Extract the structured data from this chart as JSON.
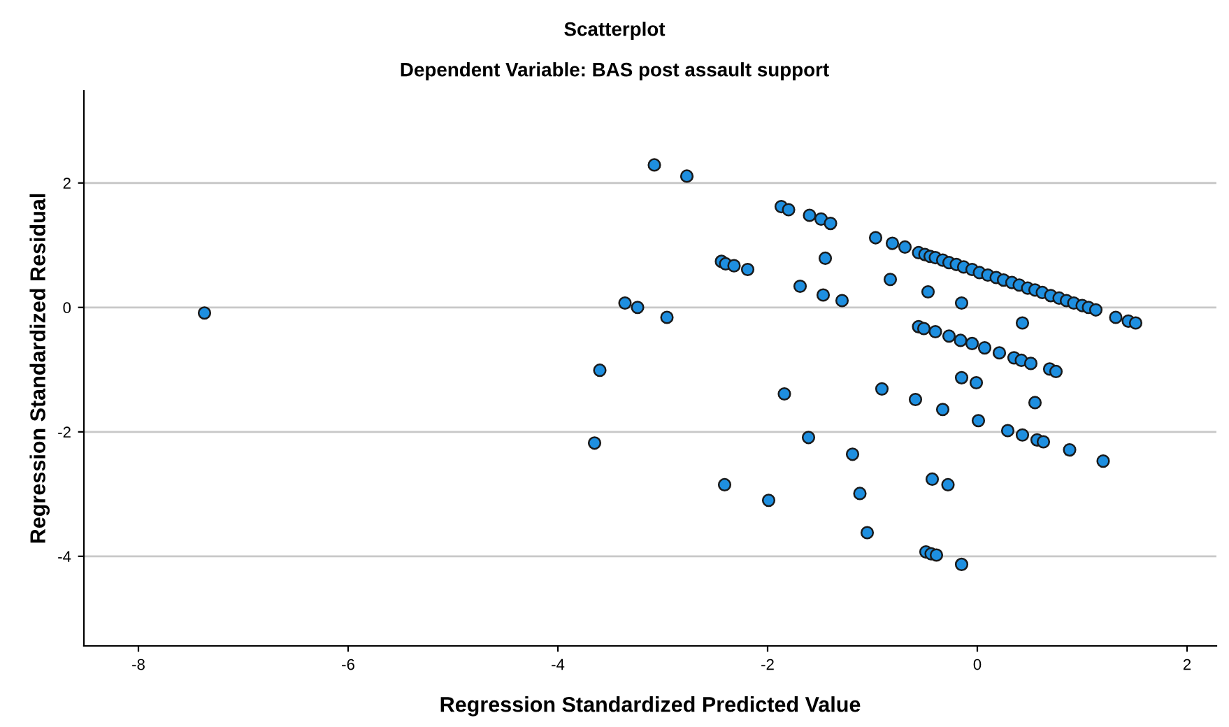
{
  "chart_data": {
    "type": "scatter",
    "title": "Scatterplot",
    "subtitle": "Dependent Variable: BAS post assault support",
    "xlabel": "Regression Standardized Predicted Value",
    "ylabel": "Regression Standardized Residual",
    "marker": "circle",
    "grid": "y",
    "legend": false,
    "xlim": [
      -8.52,
      2.28
    ],
    "ylim": [
      -5.44,
      3.48
    ],
    "xticks": [
      -8,
      -6,
      -4,
      -2,
      0,
      2
    ],
    "yticks": [
      -4,
      -2,
      0,
      2
    ],
    "series": [
      {
        "color": "#1e8fe0",
        "x": [
          -7.37,
          -3.08,
          -2.77,
          -1.87,
          -1.8,
          -1.6,
          -1.49,
          -1.4,
          -0.97,
          -2.44,
          -2.4,
          -2.32,
          -2.19,
          -1.45,
          -1.69,
          -1.47,
          -1.29,
          -3.36,
          -3.24,
          -2.96,
          -3.6,
          -3.65,
          -1.84,
          -1.61,
          -2.41,
          -1.99,
          -1.19,
          -1.12,
          -1.05,
          -0.91,
          -0.59,
          -0.33,
          -0.15,
          -0.01,
          0.01,
          0.29,
          0.43,
          0.57,
          0.63,
          0.88,
          1.2,
          0.55,
          -0.43,
          -0.28,
          -0.49,
          -0.44,
          -0.39,
          -0.15,
          0.69,
          0.75,
          -0.81,
          -0.69,
          -0.56,
          -0.5,
          -0.45,
          -0.4,
          -0.33,
          -0.27,
          -0.2,
          -0.13,
          -0.05,
          0.02,
          0.1,
          0.18,
          0.25,
          0.33,
          0.4,
          0.48,
          0.55,
          0.62,
          0.7,
          0.78,
          0.85,
          0.92,
          1.0,
          1.06,
          1.13,
          1.32,
          1.44,
          1.51,
          -0.83,
          -0.47,
          -0.15,
          0.43,
          -0.56,
          -0.51,
          -0.4,
          -0.27,
          -0.16,
          -0.05,
          0.07,
          0.21,
          0.35,
          0.42,
          0.51
        ],
        "values": [
          -0.09,
          2.29,
          2.11,
          1.62,
          1.57,
          1.48,
          1.42,
          1.35,
          1.12,
          0.74,
          0.7,
          0.67,
          0.61,
          0.79,
          0.34,
          0.2,
          0.11,
          0.07,
          0.0,
          -0.16,
          -1.01,
          -2.18,
          -1.39,
          -2.09,
          -2.85,
          -3.1,
          -2.36,
          -2.99,
          -3.62,
          -1.31,
          -1.48,
          -1.64,
          -1.13,
          -1.21,
          -1.82,
          -1.98,
          -2.05,
          -2.13,
          -2.16,
          -2.29,
          -2.47,
          -1.53,
          -2.76,
          -2.85,
          -3.93,
          -3.96,
          -3.98,
          -4.13,
          -0.99,
          -1.03,
          1.03,
          0.97,
          0.88,
          0.85,
          0.82,
          0.8,
          0.76,
          0.72,
          0.69,
          0.65,
          0.61,
          0.56,
          0.52,
          0.48,
          0.44,
          0.4,
          0.36,
          0.31,
          0.28,
          0.24,
          0.19,
          0.15,
          0.11,
          0.07,
          0.03,
          0.0,
          -0.04,
          -0.16,
          -0.22,
          -0.25,
          0.45,
          0.25,
          0.07,
          -0.25,
          -0.31,
          -0.34,
          -0.39,
          -0.46,
          -0.53,
          -0.58,
          -0.65,
          -0.73,
          -0.81,
          -0.85,
          -0.9
        ]
      }
    ]
  }
}
